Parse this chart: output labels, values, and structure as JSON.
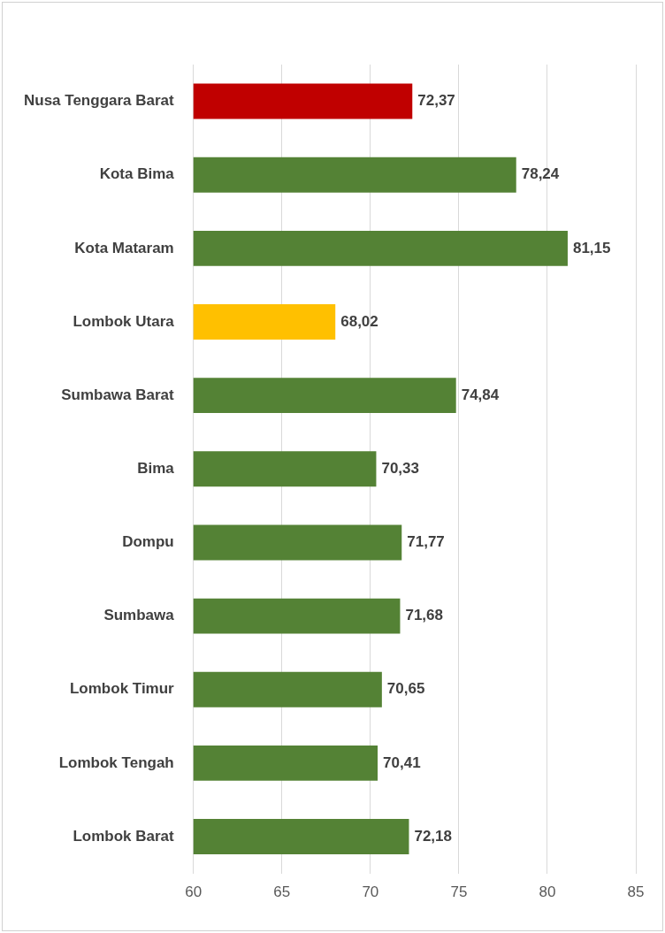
{
  "chart_data": {
    "type": "bar",
    "orientation": "horizontal",
    "categories": [
      "Nusa Tenggara Barat",
      "Kota Bima",
      "Kota Mataram",
      "Lombok Utara",
      "Sumbawa Barat",
      "Bima",
      "Dompu",
      "Sumbawa",
      "Lombok Timur",
      "Lombok Tengah",
      "Lombok Barat"
    ],
    "values": [
      72.37,
      78.24,
      81.15,
      68.02,
      74.84,
      70.33,
      71.77,
      71.68,
      70.65,
      70.41,
      72.18
    ],
    "colors": [
      "#c00000",
      "#548235",
      "#548235",
      "#ffc000",
      "#548235",
      "#548235",
      "#548235",
      "#548235",
      "#548235",
      "#548235",
      "#548235"
    ],
    "value_labels": [
      "72,37",
      "78,24",
      "81,15",
      "68,02",
      "74,84",
      "70,33",
      "71,77",
      "71,68",
      "70,65",
      "70,41",
      "72,18"
    ],
    "xlim": [
      60,
      85
    ],
    "xticks": [
      60,
      65,
      70,
      75,
      80,
      85
    ],
    "grid": "x"
  }
}
